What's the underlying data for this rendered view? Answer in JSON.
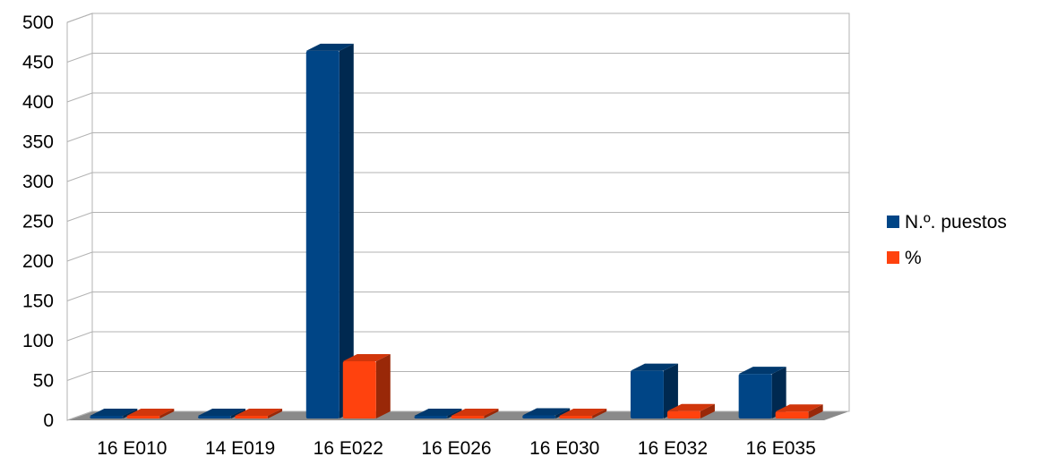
{
  "chart_data": {
    "type": "bar",
    "style": "3d-clustered",
    "categories": [
      "16 E010",
      "14 E019",
      "16 E022",
      "16 E026",
      "16 E030",
      "16 E032",
      "16 E035"
    ],
    "series": [
      {
        "name": "N.º. puestos",
        "color": "#004586",
        "values": [
          1,
          1,
          462,
          1,
          4,
          60,
          56
        ]
      },
      {
        "name": "%",
        "color": "#ff420e",
        "values": [
          0.2,
          0.2,
          71.9,
          0.2,
          0.6,
          9.3,
          8.7
        ]
      }
    ],
    "ylim": [
      0,
      500
    ],
    "yticks": [
      0,
      50,
      100,
      150,
      200,
      250,
      300,
      350,
      400,
      450,
      500
    ],
    "grid": true,
    "legend_position": "right"
  }
}
